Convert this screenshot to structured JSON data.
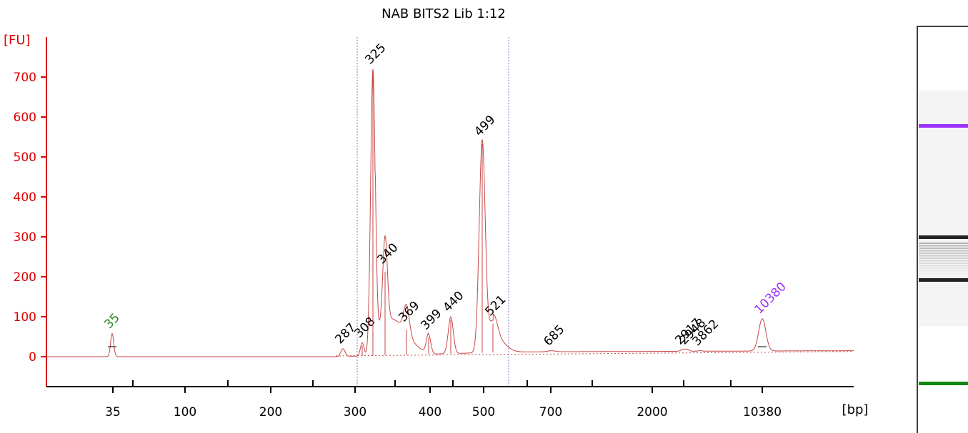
{
  "chart_data": {
    "type": "line",
    "title": "NAB BITS2 Lib 1:12",
    "ylabel": "[FU]",
    "xlabel": "[bp]",
    "ylim": [
      -75,
      790
    ],
    "y_ticks": [
      0,
      100,
      200,
      300,
      400,
      500,
      600,
      700
    ],
    "x_tick_labels": [
      "35",
      "100",
      "200",
      "300",
      "400",
      "500",
      "700",
      "2000",
      "10380"
    ],
    "grid": false,
    "marker_colors": {
      "lower": "#228b22",
      "upper": "#9b30ff",
      "trace": "#c84646",
      "axis": "#dd0000"
    },
    "peaks": [
      {
        "label": "35",
        "height": 58,
        "marker": "lower"
      },
      {
        "label": "287",
        "height": 20
      },
      {
        "label": "308",
        "height": 35
      },
      {
        "label": "325",
        "height": 720
      },
      {
        "label": "340",
        "height": 220
      },
      {
        "label": "369",
        "height": 75
      },
      {
        "label": "399",
        "height": 55
      },
      {
        "label": "440",
        "height": 100
      },
      {
        "label": "499",
        "height": 540
      },
      {
        "label": "521",
        "height": 90
      },
      {
        "label": "685",
        "height": 15
      },
      {
        "label": "2917",
        "height": 18
      },
      {
        "label": "2948",
        "height": 18
      },
      {
        "label": "3862",
        "height": 15
      },
      {
        "label": "10380",
        "height": 95,
        "marker": "upper"
      }
    ],
    "gel_bands": [
      {
        "name": "upper-marker-band",
        "color": "#9b30ff"
      },
      {
        "name": "sample-band",
        "color": "#222222"
      },
      {
        "name": "sample-band",
        "color": "#222222"
      },
      {
        "name": "lower-marker-band",
        "color": "#118811"
      }
    ]
  }
}
